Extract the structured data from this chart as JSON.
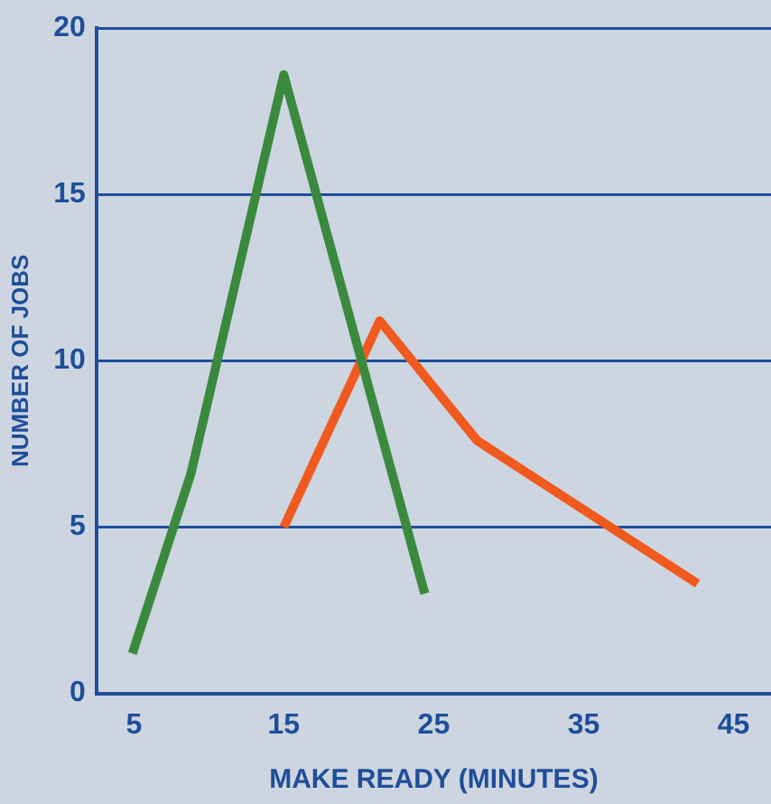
{
  "chart_data": {
    "type": "line",
    "xlabel": "MAKE READY (MINUTES)",
    "ylabel": "NUMBER OF JOBS",
    "series": [
      {
        "color": "#3a8a3e",
        "x": [
          4.9,
          8.8,
          15,
          24.4
        ],
        "values": [
          1.2,
          6.6,
          18.6,
          3.0
        ]
      },
      {
        "color": "#f05a1e",
        "x": [
          15,
          21.4,
          27.9,
          42.6
        ],
        "values": [
          5.0,
          11.2,
          7.6,
          3.3
        ]
      }
    ],
    "xlim": [
      2.5,
      47.5
    ],
    "xticks": [
      5,
      15,
      25,
      35,
      45
    ],
    "ylim": [
      0,
      20
    ],
    "yticks": [
      0,
      5,
      10,
      15,
      20
    ],
    "grid": "y",
    "legend": false,
    "marker": "none",
    "line_style": "solid"
  }
}
